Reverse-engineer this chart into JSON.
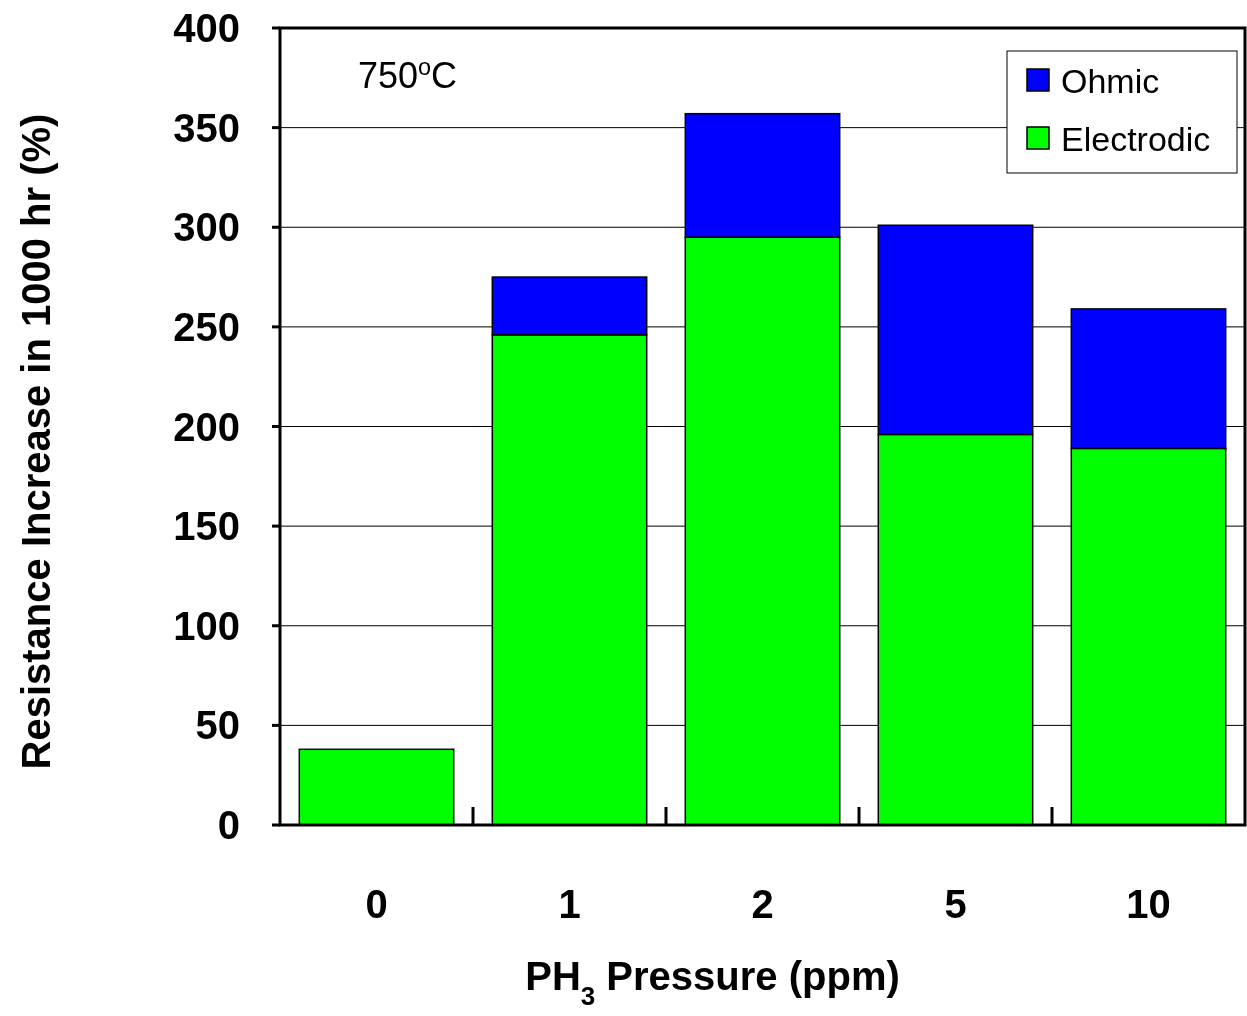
{
  "chart_data": {
    "type": "bar",
    "stacked": true,
    "xlabel": "PH$_{3}$ Pressure (ppm)",
    "ylabel": "Resistance Increase in 1000 hr (%)",
    "categories": [
      "0",
      "1",
      "2",
      "5",
      "10"
    ],
    "series": [
      {
        "name": "Electrodic",
        "color": "#00ff00",
        "values": [
          38,
          246,
          295,
          196,
          189
        ]
      },
      {
        "name": "Ohmic",
        "color": "#0000ff",
        "values": [
          0,
          29,
          62,
          105,
          70
        ]
      }
    ],
    "ylim": [
      0,
      400
    ],
    "yticks": [
      0,
      50,
      100,
      150,
      200,
      250,
      300,
      350,
      400
    ],
    "grid": "y",
    "legend": "top right",
    "annotations": [
      "750$^{o}$C"
    ]
  }
}
